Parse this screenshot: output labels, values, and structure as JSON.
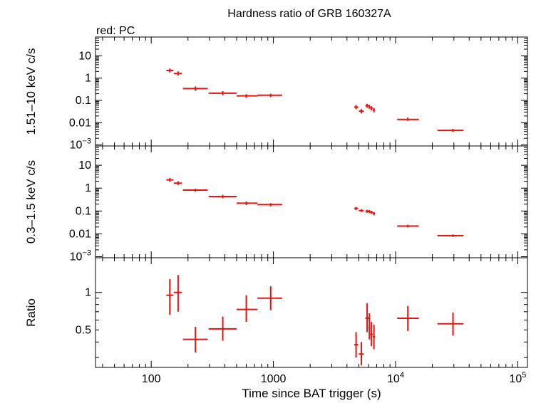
{
  "title": "Hardness ratio of GRB 160327A",
  "legend_note": "red: PC",
  "xlabel": "Time since BAT trigger (s)",
  "x_ticks": [
    {
      "value": 100,
      "base": "100",
      "sup": ""
    },
    {
      "value": 1000,
      "base": "1000",
      "sup": ""
    },
    {
      "value": 10000,
      "base": "10",
      "sup": "4"
    },
    {
      "value": 100000,
      "base": "10",
      "sup": "5"
    }
  ],
  "chart_data": [
    {
      "type": "scatter",
      "panel": "top",
      "ylabel": "1.51–10 keV c/s",
      "xscale": "log",
      "yscale": "log",
      "xlim": [
        35,
        120000
      ],
      "ylim": [
        0.0009,
        70
      ],
      "y_ticks": [
        {
          "value": 10,
          "base": "10",
          "sup": ""
        },
        {
          "value": 1,
          "base": "1",
          "sup": ""
        },
        {
          "value": 0.1,
          "base": "0.1",
          "sup": ""
        },
        {
          "value": 0.01,
          "base": "0.01",
          "sup": ""
        },
        {
          "value": 0.001,
          "base": "10",
          "sup": "−3"
        }
      ],
      "series": [
        {
          "color": "#e8120e",
          "points": [
            {
              "x": 142,
              "xlo": 133,
              "xhi": 152,
              "y": 2.2,
              "ylo": 1.8,
              "yhi": 2.7
            },
            {
              "x": 166,
              "xlo": 153,
              "xhi": 178,
              "y": 1.6,
              "ylo": 1.3,
              "yhi": 2.0
            },
            {
              "x": 230,
              "xlo": 182,
              "xhi": 290,
              "y": 0.34,
              "ylo": 0.27,
              "yhi": 0.42
            },
            {
              "x": 385,
              "xlo": 295,
              "xhi": 500,
              "y": 0.21,
              "ylo": 0.17,
              "yhi": 0.26
            },
            {
              "x": 600,
              "xlo": 500,
              "xhi": 740,
              "y": 0.16,
              "ylo": 0.13,
              "yhi": 0.19
            },
            {
              "x": 950,
              "xlo": 740,
              "xhi": 1180,
              "y": 0.17,
              "ylo": 0.14,
              "yhi": 0.2
            },
            {
              "x": 4750,
              "xlo": 4580,
              "xhi": 4950,
              "y": 0.05,
              "ylo": 0.04,
              "yhi": 0.062
            },
            {
              "x": 5250,
              "xlo": 5000,
              "xhi": 5500,
              "y": 0.033,
              "ylo": 0.026,
              "yhi": 0.041
            },
            {
              "x": 5850,
              "xlo": 5650,
              "xhi": 6050,
              "y": 0.058,
              "ylo": 0.047,
              "yhi": 0.07
            },
            {
              "x": 6100,
              "xlo": 6000,
              "xhi": 6200,
              "y": 0.052,
              "ylo": 0.042,
              "yhi": 0.063
            },
            {
              "x": 6350,
              "xlo": 6200,
              "xhi": 6500,
              "y": 0.045,
              "ylo": 0.036,
              "yhi": 0.055
            },
            {
              "x": 6650,
              "xlo": 6500,
              "xhi": 6800,
              "y": 0.037,
              "ylo": 0.029,
              "yhi": 0.046
            },
            {
              "x": 12600,
              "xlo": 10300,
              "xhi": 15500,
              "y": 0.014,
              "ylo": 0.012,
              "yhi": 0.017
            },
            {
              "x": 29500,
              "xlo": 22000,
              "xhi": 36000,
              "y": 0.0045,
              "ylo": 0.0038,
              "yhi": 0.0053
            }
          ]
        }
      ]
    },
    {
      "type": "scatter",
      "panel": "middle",
      "ylabel": "0.3–1.5 keV c/s",
      "xscale": "log",
      "yscale": "log",
      "xlim": [
        35,
        120000
      ],
      "ylim": [
        0.0009,
        70
      ],
      "y_ticks": [
        {
          "value": 10,
          "base": "10",
          "sup": ""
        },
        {
          "value": 1,
          "base": "1",
          "sup": ""
        },
        {
          "value": 0.1,
          "base": "0.1",
          "sup": ""
        },
        {
          "value": 0.01,
          "base": "0.01",
          "sup": ""
        },
        {
          "value": 0.001,
          "base": "10",
          "sup": "−3"
        }
      ],
      "series": [
        {
          "color": "#e8120e",
          "points": [
            {
              "x": 142,
              "xlo": 133,
              "xhi": 152,
              "y": 2.3,
              "ylo": 1.9,
              "yhi": 2.8
            },
            {
              "x": 166,
              "xlo": 153,
              "xhi": 178,
              "y": 1.65,
              "ylo": 1.35,
              "yhi": 2.0
            },
            {
              "x": 230,
              "xlo": 182,
              "xhi": 290,
              "y": 0.82,
              "ylo": 0.7,
              "yhi": 0.95
            },
            {
              "x": 385,
              "xlo": 295,
              "xhi": 500,
              "y": 0.43,
              "ylo": 0.36,
              "yhi": 0.51
            },
            {
              "x": 600,
              "xlo": 500,
              "xhi": 740,
              "y": 0.22,
              "ylo": 0.18,
              "yhi": 0.26
            },
            {
              "x": 950,
              "xlo": 740,
              "xhi": 1180,
              "y": 0.19,
              "ylo": 0.16,
              "yhi": 0.22
            },
            {
              "x": 4750,
              "xlo": 4580,
              "xhi": 4950,
              "y": 0.13,
              "ylo": 0.11,
              "yhi": 0.15
            },
            {
              "x": 5250,
              "xlo": 5000,
              "xhi": 5500,
              "y": 0.105,
              "ylo": 0.09,
              "yhi": 0.12
            },
            {
              "x": 5850,
              "xlo": 5650,
              "xhi": 6050,
              "y": 0.098,
              "ylo": 0.084,
              "yhi": 0.113
            },
            {
              "x": 6100,
              "xlo": 6000,
              "xhi": 6200,
              "y": 0.095,
              "ylo": 0.081,
              "yhi": 0.11
            },
            {
              "x": 6350,
              "xlo": 6200,
              "xhi": 6500,
              "y": 0.088,
              "ylo": 0.075,
              "yhi": 0.102
            },
            {
              "x": 6650,
              "xlo": 6500,
              "xhi": 6800,
              "y": 0.077,
              "ylo": 0.065,
              "yhi": 0.09
            },
            {
              "x": 12600,
              "xlo": 10300,
              "xhi": 15500,
              "y": 0.022,
              "ylo": 0.019,
              "yhi": 0.025
            },
            {
              "x": 29500,
              "xlo": 22000,
              "xhi": 36000,
              "y": 0.0083,
              "ylo": 0.0073,
              "yhi": 0.0094
            }
          ]
        }
      ]
    },
    {
      "type": "scatter",
      "panel": "bottom",
      "ylabel": "Ratio",
      "xscale": "log",
      "yscale": "log",
      "xlim": [
        35,
        120000
      ],
      "ylim": [
        0.25,
        1.9
      ],
      "y_ticks": [
        {
          "value": 1,
          "base": "1",
          "sup": ""
        },
        {
          "value": 0.5,
          "base": "0.5",
          "sup": ""
        }
      ],
      "series": [
        {
          "color": "#e8120e",
          "points": [
            {
              "x": 142,
              "xlo": 133,
              "xhi": 152,
              "y": 0.95,
              "ylo": 0.66,
              "yhi": 1.28
            },
            {
              "x": 166,
              "xlo": 153,
              "xhi": 178,
              "y": 1.0,
              "ylo": 0.7,
              "yhi": 1.38
            },
            {
              "x": 230,
              "xlo": 182,
              "xhi": 290,
              "y": 0.42,
              "ylo": 0.33,
              "yhi": 0.53
            },
            {
              "x": 385,
              "xlo": 295,
              "xhi": 500,
              "y": 0.51,
              "ylo": 0.41,
              "yhi": 0.64
            },
            {
              "x": 600,
              "xlo": 500,
              "xhi": 740,
              "y": 0.73,
              "ylo": 0.58,
              "yhi": 0.95
            },
            {
              "x": 950,
              "xlo": 740,
              "xhi": 1180,
              "y": 0.9,
              "ylo": 0.72,
              "yhi": 1.12
            },
            {
              "x": 4750,
              "xlo": 4580,
              "xhi": 4950,
              "y": 0.38,
              "ylo": 0.3,
              "yhi": 0.48
            },
            {
              "x": 5250,
              "xlo": 5000,
              "xhi": 5500,
              "y": 0.32,
              "ylo": 0.26,
              "yhi": 0.4
            },
            {
              "x": 5850,
              "xlo": 5650,
              "xhi": 6050,
              "y": 0.62,
              "ylo": 0.48,
              "yhi": 0.82
            },
            {
              "x": 6100,
              "xlo": 6000,
              "xhi": 6200,
              "y": 0.52,
              "ylo": 0.42,
              "yhi": 0.68
            },
            {
              "x": 6350,
              "xlo": 6200,
              "xhi": 6500,
              "y": 0.46,
              "ylo": 0.37,
              "yhi": 0.58
            },
            {
              "x": 6650,
              "xlo": 6500,
              "xhi": 6800,
              "y": 0.44,
              "ylo": 0.35,
              "yhi": 0.55
            },
            {
              "x": 12600,
              "xlo": 10300,
              "xhi": 15500,
              "y": 0.62,
              "ylo": 0.49,
              "yhi": 0.78
            },
            {
              "x": 29500,
              "xlo": 22000,
              "xhi": 36000,
              "y": 0.56,
              "ylo": 0.45,
              "yhi": 0.69
            }
          ]
        }
      ]
    }
  ]
}
